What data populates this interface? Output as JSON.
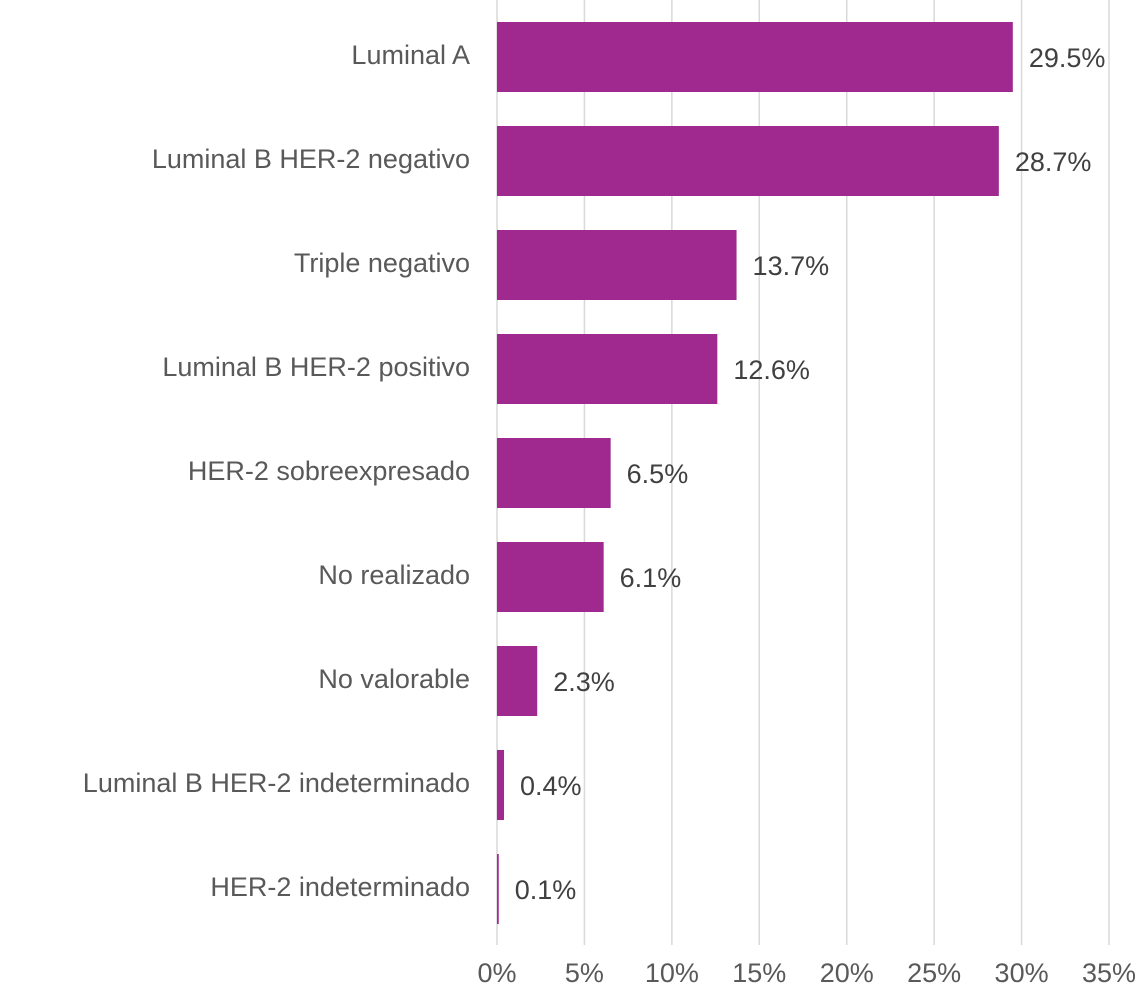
{
  "chart_data": {
    "type": "bar",
    "orientation": "horizontal",
    "categories": [
      "Luminal A",
      "Luminal B HER-2 negativo",
      "Triple negativo",
      "Luminal B HER-2 positivo",
      "HER-2 sobreexpresado",
      "No realizado",
      "No valorable",
      "Luminal B HER-2 indeterminado",
      "HER-2 indeterminado"
    ],
    "values": [
      29.5,
      28.7,
      13.7,
      12.6,
      6.5,
      6.1,
      2.3,
      0.4,
      0.1
    ],
    "value_labels": [
      "29.5%",
      "28.7%",
      "13.7%",
      "12.6%",
      "6.5%",
      "6.1%",
      "2.3%",
      "0.4%",
      "0.1%"
    ],
    "color": "#a0298f",
    "xlim": [
      0,
      35
    ],
    "xticks": [
      {
        "value": 0,
        "label": "0%"
      },
      {
        "value": 5,
        "label": "5%"
      },
      {
        "value": 10,
        "label": "10%"
      },
      {
        "value": 15,
        "label": "15%"
      },
      {
        "value": 20,
        "label": "20%"
      },
      {
        "value": 25,
        "label": "25%"
      },
      {
        "value": 30,
        "label": "30%"
      },
      {
        "value": 35,
        "label": "35%"
      }
    ],
    "grid": true
  }
}
